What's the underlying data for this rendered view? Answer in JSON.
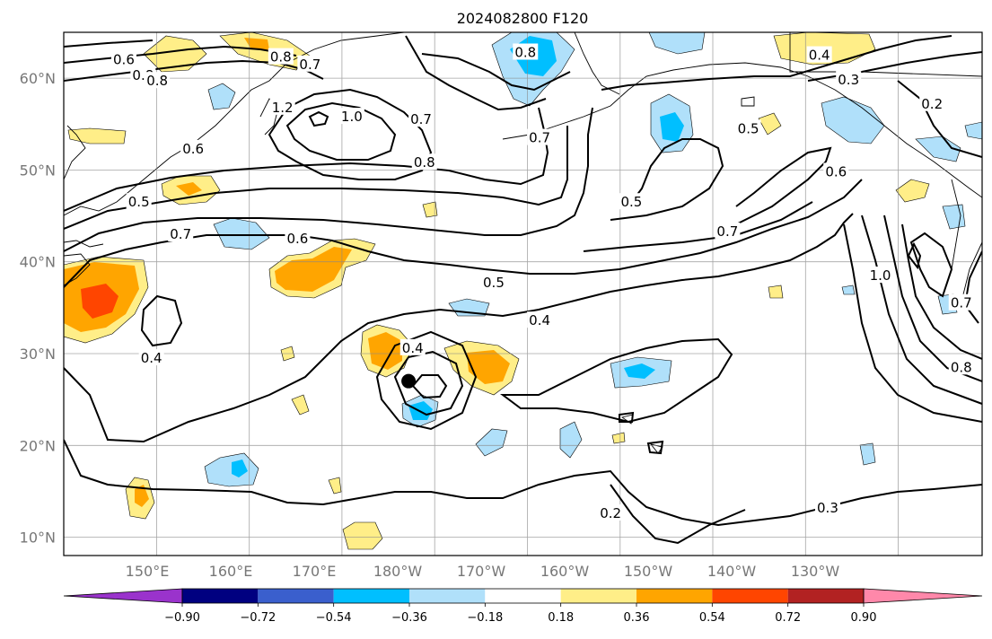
{
  "title": "2024082800 F120",
  "map": {
    "lon_range": [
      140,
      250
    ],
    "lat_range": [
      8,
      65
    ],
    "lon_ticks": [
      {
        "lon": 150,
        "label": "150°E"
      },
      {
        "lon": 160,
        "label": "160°E"
      },
      {
        "lon": 170,
        "label": "170°E"
      },
      {
        "lon": 180,
        "label": "180°W"
      },
      {
        "lon": 190,
        "label": "170°W"
      },
      {
        "lon": 200,
        "label": "160°W"
      },
      {
        "lon": 210,
        "label": "150°W"
      },
      {
        "lon": 220,
        "label": "140°W"
      },
      {
        "lon": 230,
        "label": "130°W"
      }
    ],
    "lat_ticks": [
      {
        "lat": 10,
        "label": "10°N"
      },
      {
        "lat": 20,
        "label": "20°N"
      },
      {
        "lat": 30,
        "label": "30°N"
      },
      {
        "lat": 40,
        "label": "40°N"
      },
      {
        "lat": 50,
        "label": "50°N"
      },
      {
        "lat": 60,
        "label": "60°N"
      }
    ],
    "gridlines": true,
    "storm_marker": {
      "lon": 181.3,
      "lat": 27
    }
  },
  "colorbar": {
    "levels": [
      -0.9,
      -0.72,
      -0.54,
      -0.36,
      -0.18,
      0.18,
      0.36,
      0.54,
      0.72,
      0.9
    ],
    "tick_labels": [
      "−0.90",
      "−0.72",
      "−0.54",
      "−0.36",
      "−0.18",
      "0.18",
      "0.36",
      "0.54",
      "0.72",
      "0.90"
    ],
    "colors": [
      "#9a33cc",
      "#000080",
      "#3a5fcd",
      "#00bfff",
      "#b0e0fa",
      "#ffffff",
      "#ffee88",
      "#ffa500",
      "#ff4500",
      "#b22222",
      "#ff88aa"
    ],
    "extend": "both"
  },
  "contour_labels": [
    {
      "text": "0.6",
      "lon": 147.2,
      "lat": 62
    },
    {
      "text": "0.8",
      "lon": 149.5,
      "lat": 60.3
    },
    {
      "text": "0.8",
      "lon": 151.2,
      "lat": 59.7
    },
    {
      "text": "0.6",
      "lon": 155.5,
      "lat": 52.3
    },
    {
      "text": "0.5",
      "lon": 149,
      "lat": 46.5
    },
    {
      "text": "0.7",
      "lon": 154,
      "lat": 43
    },
    {
      "text": "0.6",
      "lon": 168,
      "lat": 42.5
    },
    {
      "text": "1.2",
      "lon": 166.2,
      "lat": 56.8
    },
    {
      "text": "1.0",
      "lon": 174.5,
      "lat": 55.8
    },
    {
      "text": "0.8",
      "lon": 183.2,
      "lat": 50.8
    },
    {
      "text": "0.7",
      "lon": 182.8,
      "lat": 55.5
    },
    {
      "text": "0.8",
      "lon": 166,
      "lat": 62.3
    },
    {
      "text": "0.7",
      "lon": 169.5,
      "lat": 61.5
    },
    {
      "text": "0.8",
      "lon": 195.3,
      "lat": 62.8
    },
    {
      "text": "0.7",
      "lon": 197,
      "lat": 53.5
    },
    {
      "text": "0.5",
      "lon": 208,
      "lat": 46.5
    },
    {
      "text": "0.7",
      "lon": 219.5,
      "lat": 43.3
    },
    {
      "text": "0.4",
      "lon": 230.5,
      "lat": 62.5
    },
    {
      "text": "0.3",
      "lon": 234,
      "lat": 59.8
    },
    {
      "text": "0.2",
      "lon": 244,
      "lat": 57.2
    },
    {
      "text": "0.5",
      "lon": 222,
      "lat": 54.5
    },
    {
      "text": "0.6",
      "lon": 232.5,
      "lat": 49.8
    },
    {
      "text": "0.5",
      "lon": 191.5,
      "lat": 37.7
    },
    {
      "text": "0.4",
      "lon": 197,
      "lat": 33.6
    },
    {
      "text": "0.4",
      "lon": 150.5,
      "lat": 29.5
    },
    {
      "text": "0.4",
      "lon": 181.8,
      "lat": 30.6
    },
    {
      "text": "0.2",
      "lon": 205.5,
      "lat": 12.6
    },
    {
      "text": "0.3",
      "lon": 231.5,
      "lat": 13.2
    },
    {
      "text": "1.0",
      "lon": 237.8,
      "lat": 38.5
    },
    {
      "text": "0.7",
      "lon": 247.5,
      "lat": 35.5
    },
    {
      "text": "0.8",
      "lon": 247.5,
      "lat": 28.5
    }
  ]
}
